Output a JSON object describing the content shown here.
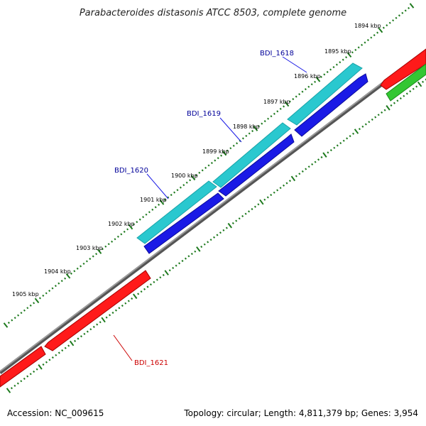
{
  "title": "Parabacteroides distasonis ATCC 8503, complete genome",
  "accession": "Accession: NC_009615",
  "summary": "Topology: circular; Length: 4,811,379 bp; Genes: 3,954",
  "scale_labels": [
    "1894 kbp",
    "1895 kbp",
    "1896 kbp",
    "1897 kbp",
    "1898 kbp",
    "1899 kbp",
    "1900 kbp",
    "1901 kbp",
    "1902 kbp",
    "1903 kbp",
    "1904 kbp",
    "1905 kbp"
  ],
  "genes": [
    {
      "id": "BDI_1618",
      "label": "BDI_1618",
      "color": "#000099"
    },
    {
      "id": "BDI_1619",
      "label": "BDI_1619",
      "color": "#000099"
    },
    {
      "id": "BDI_1620",
      "label": "BDI_1620",
      "color": "#000099"
    },
    {
      "id": "BDI_1621",
      "label": "BDI_1621",
      "color": "#cc0000"
    }
  ],
  "colors": {
    "cds": "#2ac8cf",
    "gene_forward": "#1a1ae6",
    "gene_reverse": "#ff1a1a",
    "rna": "#33c733",
    "backbone": "#888888",
    "ticks": "#1e7a1e"
  }
}
